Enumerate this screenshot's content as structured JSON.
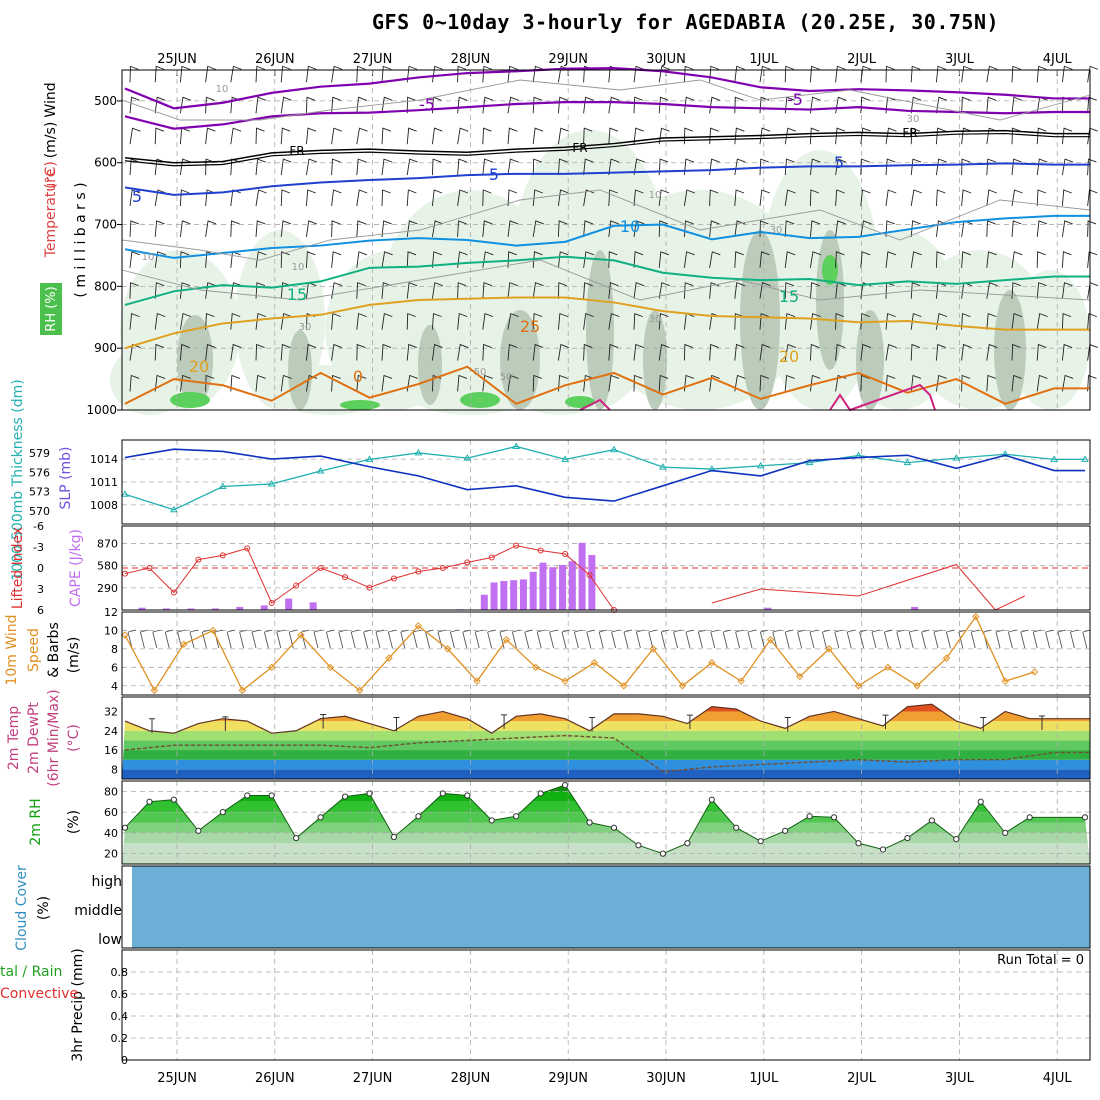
{
  "title": "GFS 0~10day 3-hourly for AGEDABIA (20.25E, 30.75N)",
  "dates": [
    "25JUN",
    "26JUN",
    "27JUN",
    "28JUN",
    "29JUN",
    "30JUN",
    "1JUL",
    "2JUL",
    "3JUL",
    "4JUL"
  ],
  "colors": {
    "sixC": "#8000b0",
    "minus5": "#8000b0",
    "fr": "#000000",
    "t5": "#2040d0",
    "t10": "#1090e0",
    "t15": "#10b080",
    "t20": "#e0a020",
    "t25": "#e07010",
    "t30": "#d02080",
    "slp": "#1030c0",
    "thick": "#20b0b0",
    "li": "#e03030",
    "cape": "#c070f0",
    "wind10": "#e09020",
    "rh2m": "#20c020",
    "cloud": "#6baed6"
  },
  "chart_data": [
    {
      "type": "line",
      "panel": "upper-air",
      "ylabel_parts": [
        "Wind",
        "(m/s)",
        "Temperature",
        "(°C)",
        "RH (%)"
      ],
      "ylabel_mid": "( m i l l i b a r s )",
      "y_ticks": [
        500,
        600,
        700,
        800,
        900,
        1000
      ],
      "ylim": [
        450,
        1000
      ],
      "contour_labels": [
        "-5",
        "-5",
        "FR",
        "FR",
        "FR",
        "5",
        "5",
        "5",
        "10",
        "10",
        "15",
        "15",
        "20",
        "20",
        "25",
        "0",
        "30",
        "10",
        "10",
        "10",
        "30",
        "30",
        "50",
        "50",
        "30"
      ],
      "series": [
        {
          "name": "-5",
          "x": [
            0,
            0.5,
            1,
            1.5,
            2,
            2.5,
            3,
            3.5,
            4,
            4.5,
            5,
            5.5,
            6,
            6.5,
            7,
            7.5,
            8,
            8.5,
            9,
            9.5
          ],
          "values": [
            480,
            512,
            503,
            487,
            477,
            472,
            462,
            455,
            452,
            448,
            447,
            452,
            462,
            478,
            484,
            481,
            483,
            486,
            490,
            496
          ]
        },
        {
          "name": "-5",
          "x": [
            0,
            0.5,
            1,
            1.5,
            2,
            2.5,
            3,
            3.5,
            4,
            4.5,
            5,
            5.5,
            6,
            6.5,
            7,
            7.5,
            8,
            8.5,
            9,
            9.5
          ],
          "values": [
            525,
            545,
            538,
            525,
            520,
            519,
            515,
            510,
            505,
            502,
            502,
            505,
            510,
            512,
            514,
            510,
            516,
            518,
            520,
            518
          ]
        },
        {
          "name": "FR",
          "x": [
            0,
            0.5,
            1,
            1.5,
            2,
            2.5,
            3,
            3.5,
            4,
            4.5,
            5,
            5.5,
            6,
            6.5,
            7,
            7.5,
            8,
            8.5,
            9,
            9.5
          ],
          "values": [
            592,
            600,
            598,
            584,
            580,
            578,
            581,
            583,
            578,
            575,
            569,
            560,
            558,
            556,
            553,
            551,
            553,
            549,
            548,
            553
          ]
        },
        {
          "name": "5",
          "x": [
            0,
            0.5,
            1,
            1.5,
            2,
            2.5,
            3,
            3.5,
            4,
            4.5,
            5,
            5.5,
            6,
            6.5,
            7,
            7.5,
            8,
            8.5,
            9,
            9.5
          ],
          "values": [
            640,
            652,
            648,
            638,
            632,
            628,
            625,
            620,
            618,
            618,
            616,
            614,
            612,
            608,
            606,
            606,
            604,
            603,
            601,
            603
          ]
        },
        {
          "name": "10",
          "x": [
            0,
            0.5,
            1,
            1.5,
            2,
            2.5,
            3,
            3.5,
            4,
            4.5,
            5,
            5.5,
            6,
            6.5,
            7,
            7.5,
            8,
            8.5,
            9,
            9.5
          ],
          "values": [
            740,
            754,
            746,
            738,
            734,
            726,
            722,
            725,
            734,
            728,
            702,
            700,
            724,
            712,
            722,
            720,
            708,
            696,
            690,
            686
          ]
        },
        {
          "name": "15",
          "x": [
            0,
            0.5,
            1,
            1.5,
            2,
            2.5,
            3,
            3.5,
            4,
            4.5,
            5,
            5.5,
            6,
            6.5,
            7,
            7.5,
            8,
            8.5,
            9,
            9.5
          ],
          "values": [
            830,
            808,
            798,
            802,
            792,
            770,
            768,
            762,
            758,
            752,
            758,
            778,
            786,
            790,
            788,
            798,
            792,
            796,
            790,
            784
          ]
        },
        {
          "name": "20",
          "x": [
            0,
            0.5,
            1,
            1.5,
            2,
            2.5,
            3,
            3.5,
            4,
            4.5,
            5,
            5.5,
            6,
            6.5,
            7,
            7.5,
            8,
            8.5,
            9,
            9.5
          ],
          "values": [
            900,
            876,
            860,
            852,
            846,
            830,
            822,
            820,
            818,
            818,
            826,
            840,
            848,
            850,
            852,
            858,
            856,
            864,
            870,
            870
          ]
        },
        {
          "name": "25",
          "x": [
            0,
            0.5,
            1,
            1.5,
            2,
            2.5,
            3,
            3.5,
            4,
            4.5,
            5,
            5.5,
            6,
            6.5,
            7,
            7.5,
            8,
            8.5,
            9,
            9.5
          ],
          "values": [
            990,
            950,
            960,
            985,
            940,
            980,
            958,
            930,
            990,
            960,
            940,
            975,
            948,
            982,
            960,
            940,
            972,
            950,
            990,
            965
          ]
        }
      ]
    },
    {
      "type": "line",
      "panel": "slp-thickness",
      "ylabel_left": "1000-500mb Thickness (dm)",
      "ylabel_right": "SLP (mb)",
      "thickness_ticks": [
        570,
        573,
        576,
        579
      ],
      "slp_ticks": [
        1008,
        1011,
        1014
      ],
      "series": [
        {
          "name": "SLP",
          "x": [
            0,
            0.5,
            1,
            1.5,
            2,
            2.5,
            3,
            3.5,
            4,
            4.5,
            5,
            5.5,
            6,
            6.5,
            7,
            7.5,
            8,
            8.5,
            9,
            9.5
          ],
          "values": [
            1014.2,
            1015.3,
            1015.0,
            1014.0,
            1014.4,
            1013.0,
            1011.8,
            1010.0,
            1010.5,
            1009.0,
            1008.5,
            1010.5,
            1012.5,
            1011.8,
            1013.8,
            1014.2,
            1014.5,
            1012.8,
            1014.5,
            1012.5
          ]
        },
        {
          "name": "Thickness",
          "x": [
            0,
            0.5,
            1,
            1.5,
            2,
            2.5,
            3,
            3.5,
            4,
            4.5,
            5,
            5.5,
            6,
            6.5,
            7,
            7.5,
            8,
            8.5,
            9,
            9.5
          ],
          "values": [
            572.6,
            570.2,
            573.8,
            574.2,
            576.2,
            578.0,
            579.0,
            578.2,
            580.0,
            578.0,
            579.5,
            576.8,
            576.5,
            577.0,
            577.5,
            578.6,
            577.5,
            578.2,
            578.8,
            578.0
          ]
        }
      ]
    },
    {
      "type": "bar",
      "panel": "stability",
      "ylabel_left": "Lifted Index",
      "ylabel_right": "CAPE (J/kg)",
      "li_ticks": [
        -6,
        -3,
        0,
        3,
        6
      ],
      "cape_ticks": [
        290,
        580,
        870
      ],
      "series": [
        {
          "name": "Lifted Index",
          "x": [
            0,
            0.25,
            0.5,
            0.75,
            1,
            1.25,
            1.5,
            1.75,
            2,
            2.25,
            2.5,
            2.75,
            3,
            3.25,
            3.5,
            3.75,
            4,
            4.25,
            4.5,
            4.75,
            5,
            6,
            6.5,
            7.5,
            8.5,
            8.9,
            9.2
          ],
          "values": [
            0.8,
            0,
            3.5,
            -1.2,
            -1.8,
            -2.8,
            5.0,
            2.5,
            0,
            1.3,
            2.8,
            1.5,
            0.5,
            0,
            -0.8,
            -1.5,
            -3.2,
            -2.5,
            -2.0,
            1.0,
            6,
            5,
            3,
            4,
            -0.5,
            6,
            4
          ]
        },
        {
          "name": "CAPE",
          "x": [
            0,
            0.25,
            0.5,
            0.75,
            1,
            1.25,
            1.5,
            1.75,
            3.25,
            3.5,
            3.6,
            3.7,
            3.8,
            3.9,
            4.0,
            4.1,
            4.2,
            4.3,
            4.4,
            4.5,
            4.6,
            6.4,
            7.9
          ],
          "values": [
            30,
            20,
            20,
            20,
            40,
            60,
            150,
            100,
            10,
            200,
            360,
            380,
            390,
            400,
            500,
            620,
            560,
            590,
            640,
            880,
            720,
            30,
            40
          ]
        }
      ]
    },
    {
      "type": "line",
      "panel": "wind10m",
      "ylabel_parts": [
        "10m Wind",
        "Speed",
        "& Barbs",
        "(m/s)"
      ],
      "ticks": [
        4,
        6,
        8,
        10,
        12
      ],
      "ylim": [
        3,
        12
      ],
      "series": [
        {
          "name": "10m Wind Speed",
          "x": [
            0,
            0.3,
            0.6,
            0.9,
            1.2,
            1.5,
            1.8,
            2.1,
            2.4,
            2.7,
            3,
            3.3,
            3.6,
            3.9,
            4.2,
            4.5,
            4.8,
            5.1,
            5.4,
            5.7,
            6,
            6.3,
            6.6,
            6.9,
            7.2,
            7.5,
            7.8,
            8.1,
            8.4,
            8.7,
            9,
            9.3
          ],
          "values": [
            9.5,
            3.5,
            8.5,
            10,
            3.5,
            6,
            9.5,
            6,
            3.5,
            7,
            10.5,
            8,
            4.5,
            9,
            6,
            4.5,
            6.5,
            4,
            8,
            4,
            6.5,
            4.5,
            9,
            5,
            8,
            4,
            6,
            4,
            7,
            11.5,
            4.5,
            5.5
          ]
        }
      ]
    },
    {
      "type": "area",
      "panel": "temperature",
      "ylabel_parts": [
        "2m Temp",
        "2m DewPt",
        "(6hr Min/Max)",
        "(°C)"
      ],
      "ticks": [
        8,
        16,
        24,
        32
      ],
      "ylim": [
        4,
        38
      ],
      "series": [
        {
          "name": "2m Temp",
          "x": [
            0,
            0.25,
            0.5,
            0.75,
            1,
            1.25,
            1.5,
            1.75,
            2,
            2.25,
            2.5,
            2.75,
            3,
            3.25,
            3.5,
            3.75,
            4,
            4.25,
            4.5,
            4.75,
            5,
            5.25,
            5.5,
            5.75,
            6,
            6.25,
            6.5,
            6.75,
            7,
            7.25,
            7.5,
            7.75,
            8,
            8.25,
            8.5,
            8.75,
            9,
            9.25
          ],
          "values": [
            28,
            24,
            23,
            27,
            29,
            28,
            23,
            24,
            29,
            30,
            27,
            24,
            30,
            32,
            29,
            23,
            30,
            31,
            29,
            24,
            31,
            31,
            30,
            27,
            34,
            33,
            28,
            25,
            30,
            32,
            29,
            26,
            34,
            35,
            28,
            25,
            32,
            29
          ]
        },
        {
          "name": "2m DewPt",
          "x": [
            0,
            0.5,
            1,
            1.5,
            2,
            2.5,
            3,
            3.5,
            4,
            4.5,
            5,
            5.5,
            6,
            6.5,
            7,
            7.5,
            8,
            8.5,
            9,
            9.5
          ],
          "values": [
            16,
            18,
            18,
            18,
            18,
            17,
            19,
            20,
            21,
            22,
            21,
            7,
            9,
            10,
            11,
            12,
            11,
            12,
            12,
            15
          ]
        }
      ]
    },
    {
      "type": "area",
      "panel": "rh2m",
      "ylabel_parts": [
        "2m RH",
        "(%)"
      ],
      "ticks": [
        20,
        40,
        60,
        80
      ],
      "ylim": [
        10,
        90
      ],
      "series": [
        {
          "name": "2m RH",
          "x": [
            0,
            0.25,
            0.5,
            0.75,
            1,
            1.25,
            1.5,
            1.75,
            2,
            2.25,
            2.5,
            2.75,
            3,
            3.25,
            3.5,
            3.75,
            4,
            4.25,
            4.5,
            4.75,
            5,
            5.25,
            5.5,
            5.75,
            6,
            6.25,
            6.5,
            6.75,
            7,
            7.25,
            7.5,
            7.75,
            8,
            8.25,
            8.5,
            8.75,
            9,
            9.25
          ],
          "values": [
            45,
            70,
            72,
            42,
            60,
            76,
            76,
            35,
            55,
            75,
            78,
            36,
            56,
            78,
            76,
            52,
            56,
            78,
            86,
            50,
            45,
            28,
            20,
            30,
            72,
            45,
            32,
            42,
            56,
            55,
            30,
            24,
            35,
            52,
            34,
            70,
            40,
            55
          ]
        }
      ]
    },
    {
      "type": "bar",
      "panel": "cloud",
      "ylabel_parts": [
        "Cloud Cover",
        "(%)"
      ],
      "levels": [
        "high",
        "middle",
        "low"
      ]
    },
    {
      "type": "bar",
      "panel": "precip",
      "ylabel_parts": [
        "3hr Precip (mm)"
      ],
      "ylabel_left": [
        "tal / Rain",
        "Convective"
      ],
      "ticks": [
        "0",
        "0.2",
        "0.4",
        "0.6",
        "0.8"
      ],
      "ylim": [
        0,
        1
      ],
      "run_total": "Run Total = 0"
    }
  ]
}
